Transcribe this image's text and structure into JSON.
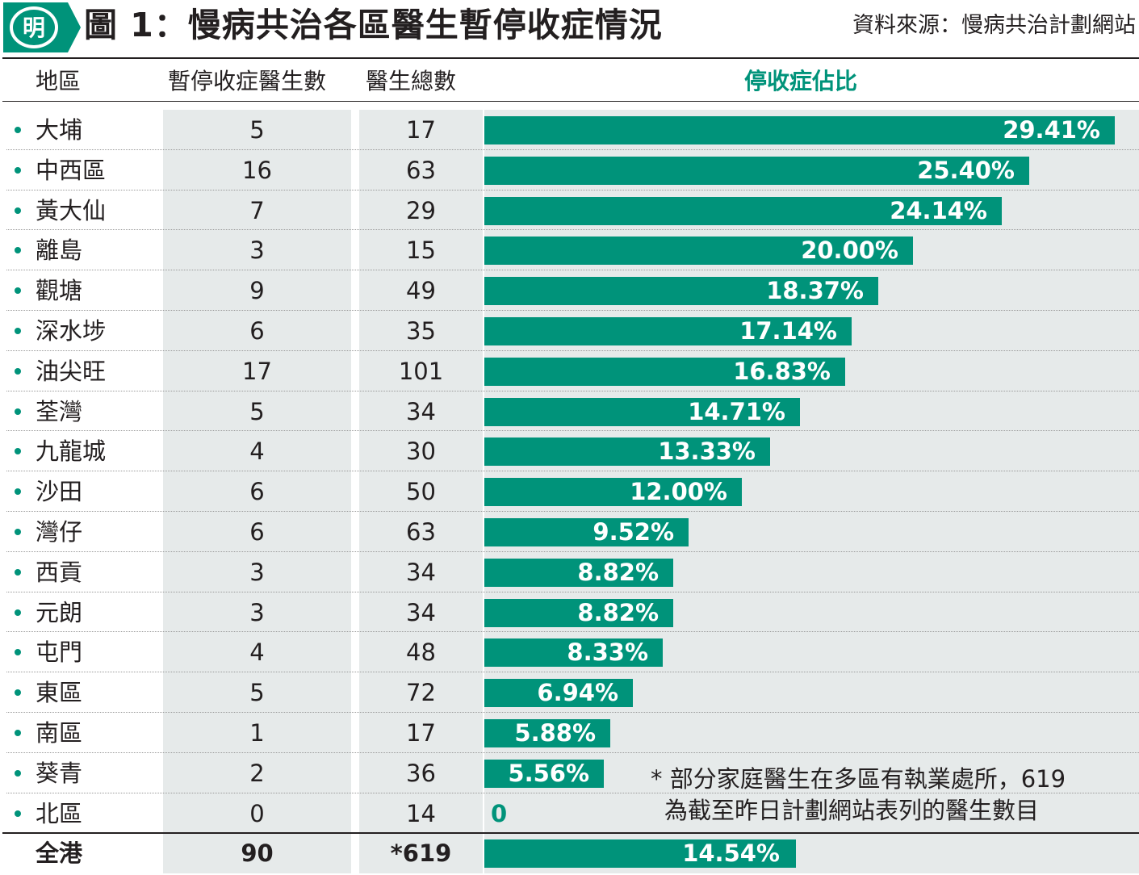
{
  "header": {
    "logo_text": "明",
    "title": "圖 1：慢病共治各區醫生暫停收症情況",
    "source": "資料來源：慢病共治計劃網站"
  },
  "columns": {
    "region": "地區",
    "suspended": "暫停收症醫生數",
    "total": "醫生總數",
    "share": "停收症佔比"
  },
  "chart_data": {
    "type": "bar",
    "orientation": "horizontal",
    "categories": [
      "大埔",
      "中西區",
      "黃大仙",
      "離島",
      "觀塘",
      "深水埗",
      "油尖旺",
      "荃灣",
      "九龍城",
      "沙田",
      "灣仔",
      "西貢",
      "元朗",
      "屯門",
      "東區",
      "南區",
      "葵青",
      "北區"
    ],
    "suspended_doctors": [
      5,
      16,
      7,
      3,
      9,
      6,
      17,
      5,
      4,
      6,
      6,
      3,
      3,
      4,
      5,
      1,
      2,
      0
    ],
    "total_doctors": [
      17,
      63,
      29,
      15,
      49,
      35,
      101,
      34,
      30,
      50,
      63,
      34,
      34,
      48,
      72,
      17,
      36,
      14
    ],
    "values": [
      29.41,
      25.4,
      24.14,
      20.0,
      18.37,
      17.14,
      16.83,
      14.71,
      13.33,
      12.0,
      9.52,
      8.82,
      8.82,
      8.33,
      6.94,
      5.88,
      5.56,
      0
    ],
    "labels": [
      "29.41%",
      "25.40%",
      "24.14%",
      "20.00%",
      "18.37%",
      "17.14%",
      "16.83%",
      "14.71%",
      "13.33%",
      "12.00%",
      "9.52%",
      "8.82%",
      "8.82%",
      "8.33%",
      "6.94%",
      "5.88%",
      "5.56%",
      "0"
    ],
    "total": {
      "region": "全港",
      "suspended": "90",
      "doctors": "*619",
      "value": 14.54,
      "label": "14.54%"
    },
    "xlim": [
      0,
      30
    ],
    "colors": {
      "bar": "#00937a",
      "column_background": "#e6eaea",
      "accent": "#00937a"
    }
  },
  "note": {
    "line1": "* 部分家庭醫生在多區有執業處所，619",
    "line2": "為截至昨日計劃網站表列的醫生數目"
  }
}
